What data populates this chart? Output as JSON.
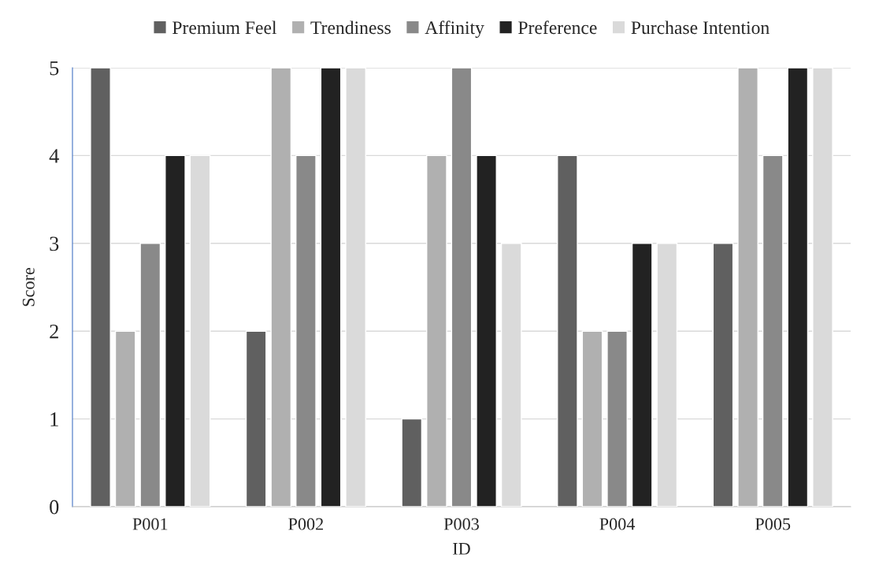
{
  "chart_data": {
    "type": "bar",
    "xlabel": "ID",
    "ylabel": "Score",
    "categories": [
      "P001",
      "P002",
      "P003",
      "P004",
      "P005"
    ],
    "series": [
      {
        "name": "Premium Feel",
        "color": "#606060",
        "values": [
          5,
          2,
          1,
          4,
          3
        ]
      },
      {
        "name": "Trendiness",
        "color": "#b0b0b0",
        "values": [
          2,
          5,
          4,
          2,
          5
        ]
      },
      {
        "name": "Affinity",
        "color": "#898989",
        "values": [
          3,
          4,
          5,
          2,
          4
        ]
      },
      {
        "name": "Preference",
        "color": "#222222",
        "values": [
          4,
          5,
          4,
          3,
          5
        ]
      },
      {
        "name": "Purchase Intention",
        "color": "#dadada",
        "values": [
          4,
          5,
          3,
          3,
          5
        ]
      }
    ],
    "ylim": [
      0,
      5
    ],
    "yticks": [
      0,
      1,
      2,
      3,
      4,
      5
    ],
    "grid": "y",
    "legend": "top"
  }
}
